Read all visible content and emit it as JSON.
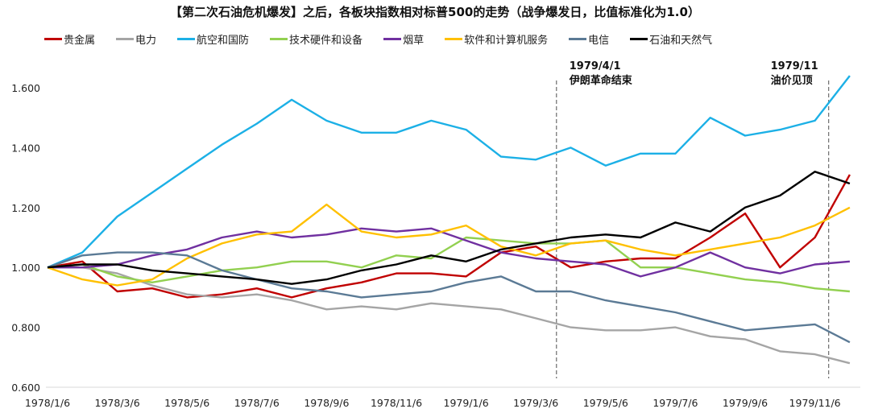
{
  "chart_data": {
    "type": "line",
    "title": "【第二次石油危机爆发】之后，各板块指数相对标普500的走势（战争爆发日，比值标准化为1.0）",
    "xlabel": "",
    "ylabel": "",
    "ylim": [
      0.6,
      1.6
    ],
    "yticks": [
      "0.600",
      "0.800",
      "1.000",
      "1.200",
      "1.400",
      "1.600"
    ],
    "xticks": [
      "1978/1/6",
      "1978/3/6",
      "1978/5/6",
      "1978/7/6",
      "1978/9/6",
      "1978/11/6",
      "1979/1/6",
      "1979/3/6",
      "1979/5/6",
      "1979/7/6",
      "1979/9/6",
      "1979/11/6"
    ],
    "grid": "horizontal baseline only",
    "legend": "top",
    "x": [
      "1978/1/6",
      "1978/2/6",
      "1978/3/6",
      "1978/4/6",
      "1978/5/6",
      "1978/6/6",
      "1978/7/6",
      "1978/8/6",
      "1978/9/6",
      "1978/10/6",
      "1978/11/6",
      "1978/12/6",
      "1979/1/6",
      "1979/2/6",
      "1979/3/6",
      "1979/4/6",
      "1979/5/6",
      "1979/6/6",
      "1979/7/6",
      "1979/8/6",
      "1979/9/6",
      "1979/10/6",
      "1979/11/6",
      "1979/12/6"
    ],
    "series": [
      {
        "name": "贵金属",
        "color": "#C00000",
        "values": [
          1.0,
          1.02,
          0.92,
          0.93,
          0.9,
          0.91,
          0.93,
          0.9,
          0.93,
          0.95,
          0.98,
          0.98,
          0.97,
          1.05,
          1.07,
          1.0,
          1.02,
          1.03,
          1.03,
          1.1,
          1.18,
          1.0,
          1.1,
          1.31
        ]
      },
      {
        "name": "电力",
        "color": "#A5A5A5",
        "values": [
          1.0,
          1.0,
          0.98,
          0.94,
          0.91,
          0.9,
          0.91,
          0.89,
          0.86,
          0.87,
          0.86,
          0.88,
          0.87,
          0.86,
          0.83,
          0.8,
          0.79,
          0.79,
          0.8,
          0.77,
          0.76,
          0.72,
          0.71,
          0.68
        ]
      },
      {
        "name": "航空和国防",
        "color": "#1CB0E6",
        "values": [
          1.0,
          1.05,
          1.17,
          1.25,
          1.33,
          1.41,
          1.48,
          1.56,
          1.49,
          1.45,
          1.45,
          1.49,
          1.46,
          1.37,
          1.36,
          1.4,
          1.34,
          1.38,
          1.38,
          1.5,
          1.44,
          1.46,
          1.49,
          1.64
        ]
      },
      {
        "name": "技术硬件和设备",
        "color": "#92D050",
        "values": [
          1.0,
          1.01,
          0.97,
          0.95,
          0.97,
          0.99,
          1.0,
          1.02,
          1.02,
          1.0,
          1.04,
          1.03,
          1.1,
          1.09,
          1.08,
          1.08,
          1.09,
          1.0,
          1.0,
          0.98,
          0.96,
          0.95,
          0.93,
          0.92
        ]
      },
      {
        "name": "烟草",
        "color": "#7030A0",
        "values": [
          1.0,
          1.0,
          1.01,
          1.04,
          1.06,
          1.1,
          1.12,
          1.1,
          1.11,
          1.13,
          1.12,
          1.13,
          1.09,
          1.05,
          1.03,
          1.02,
          1.01,
          0.97,
          1.0,
          1.05,
          1.0,
          0.98,
          1.01,
          1.02
        ]
      },
      {
        "name": "软件和计算机服务",
        "color": "#FFC000",
        "values": [
          1.0,
          0.96,
          0.94,
          0.96,
          1.03,
          1.08,
          1.11,
          1.12,
          1.21,
          1.12,
          1.1,
          1.11,
          1.14,
          1.07,
          1.04,
          1.08,
          1.09,
          1.06,
          1.04,
          1.06,
          1.08,
          1.1,
          1.14,
          1.2
        ]
      },
      {
        "name": "电信",
        "color": "#5B7A95",
        "values": [
          1.0,
          1.04,
          1.05,
          1.05,
          1.04,
          0.99,
          0.96,
          0.93,
          0.92,
          0.9,
          0.91,
          0.92,
          0.95,
          0.97,
          0.92,
          0.92,
          0.89,
          0.87,
          0.85,
          0.82,
          0.79,
          0.8,
          0.81,
          0.75
        ]
      },
      {
        "name": "石油和天然气",
        "color": "#000000",
        "values": [
          1.0,
          1.01,
          1.01,
          0.99,
          0.98,
          0.97,
          0.96,
          0.945,
          0.96,
          0.99,
          1.01,
          1.04,
          1.02,
          1.06,
          1.08,
          1.1,
          1.11,
          1.1,
          1.15,
          1.12,
          1.2,
          1.24,
          1.32,
          1.28
        ]
      }
    ],
    "annotations": [
      {
        "date": "1979/4/1",
        "line1": "1979/4/1",
        "line2": "伊朗革命结束"
      },
      {
        "date": "1979/11",
        "line1": "1979/11",
        "line2": "油价见顶"
      }
    ]
  }
}
